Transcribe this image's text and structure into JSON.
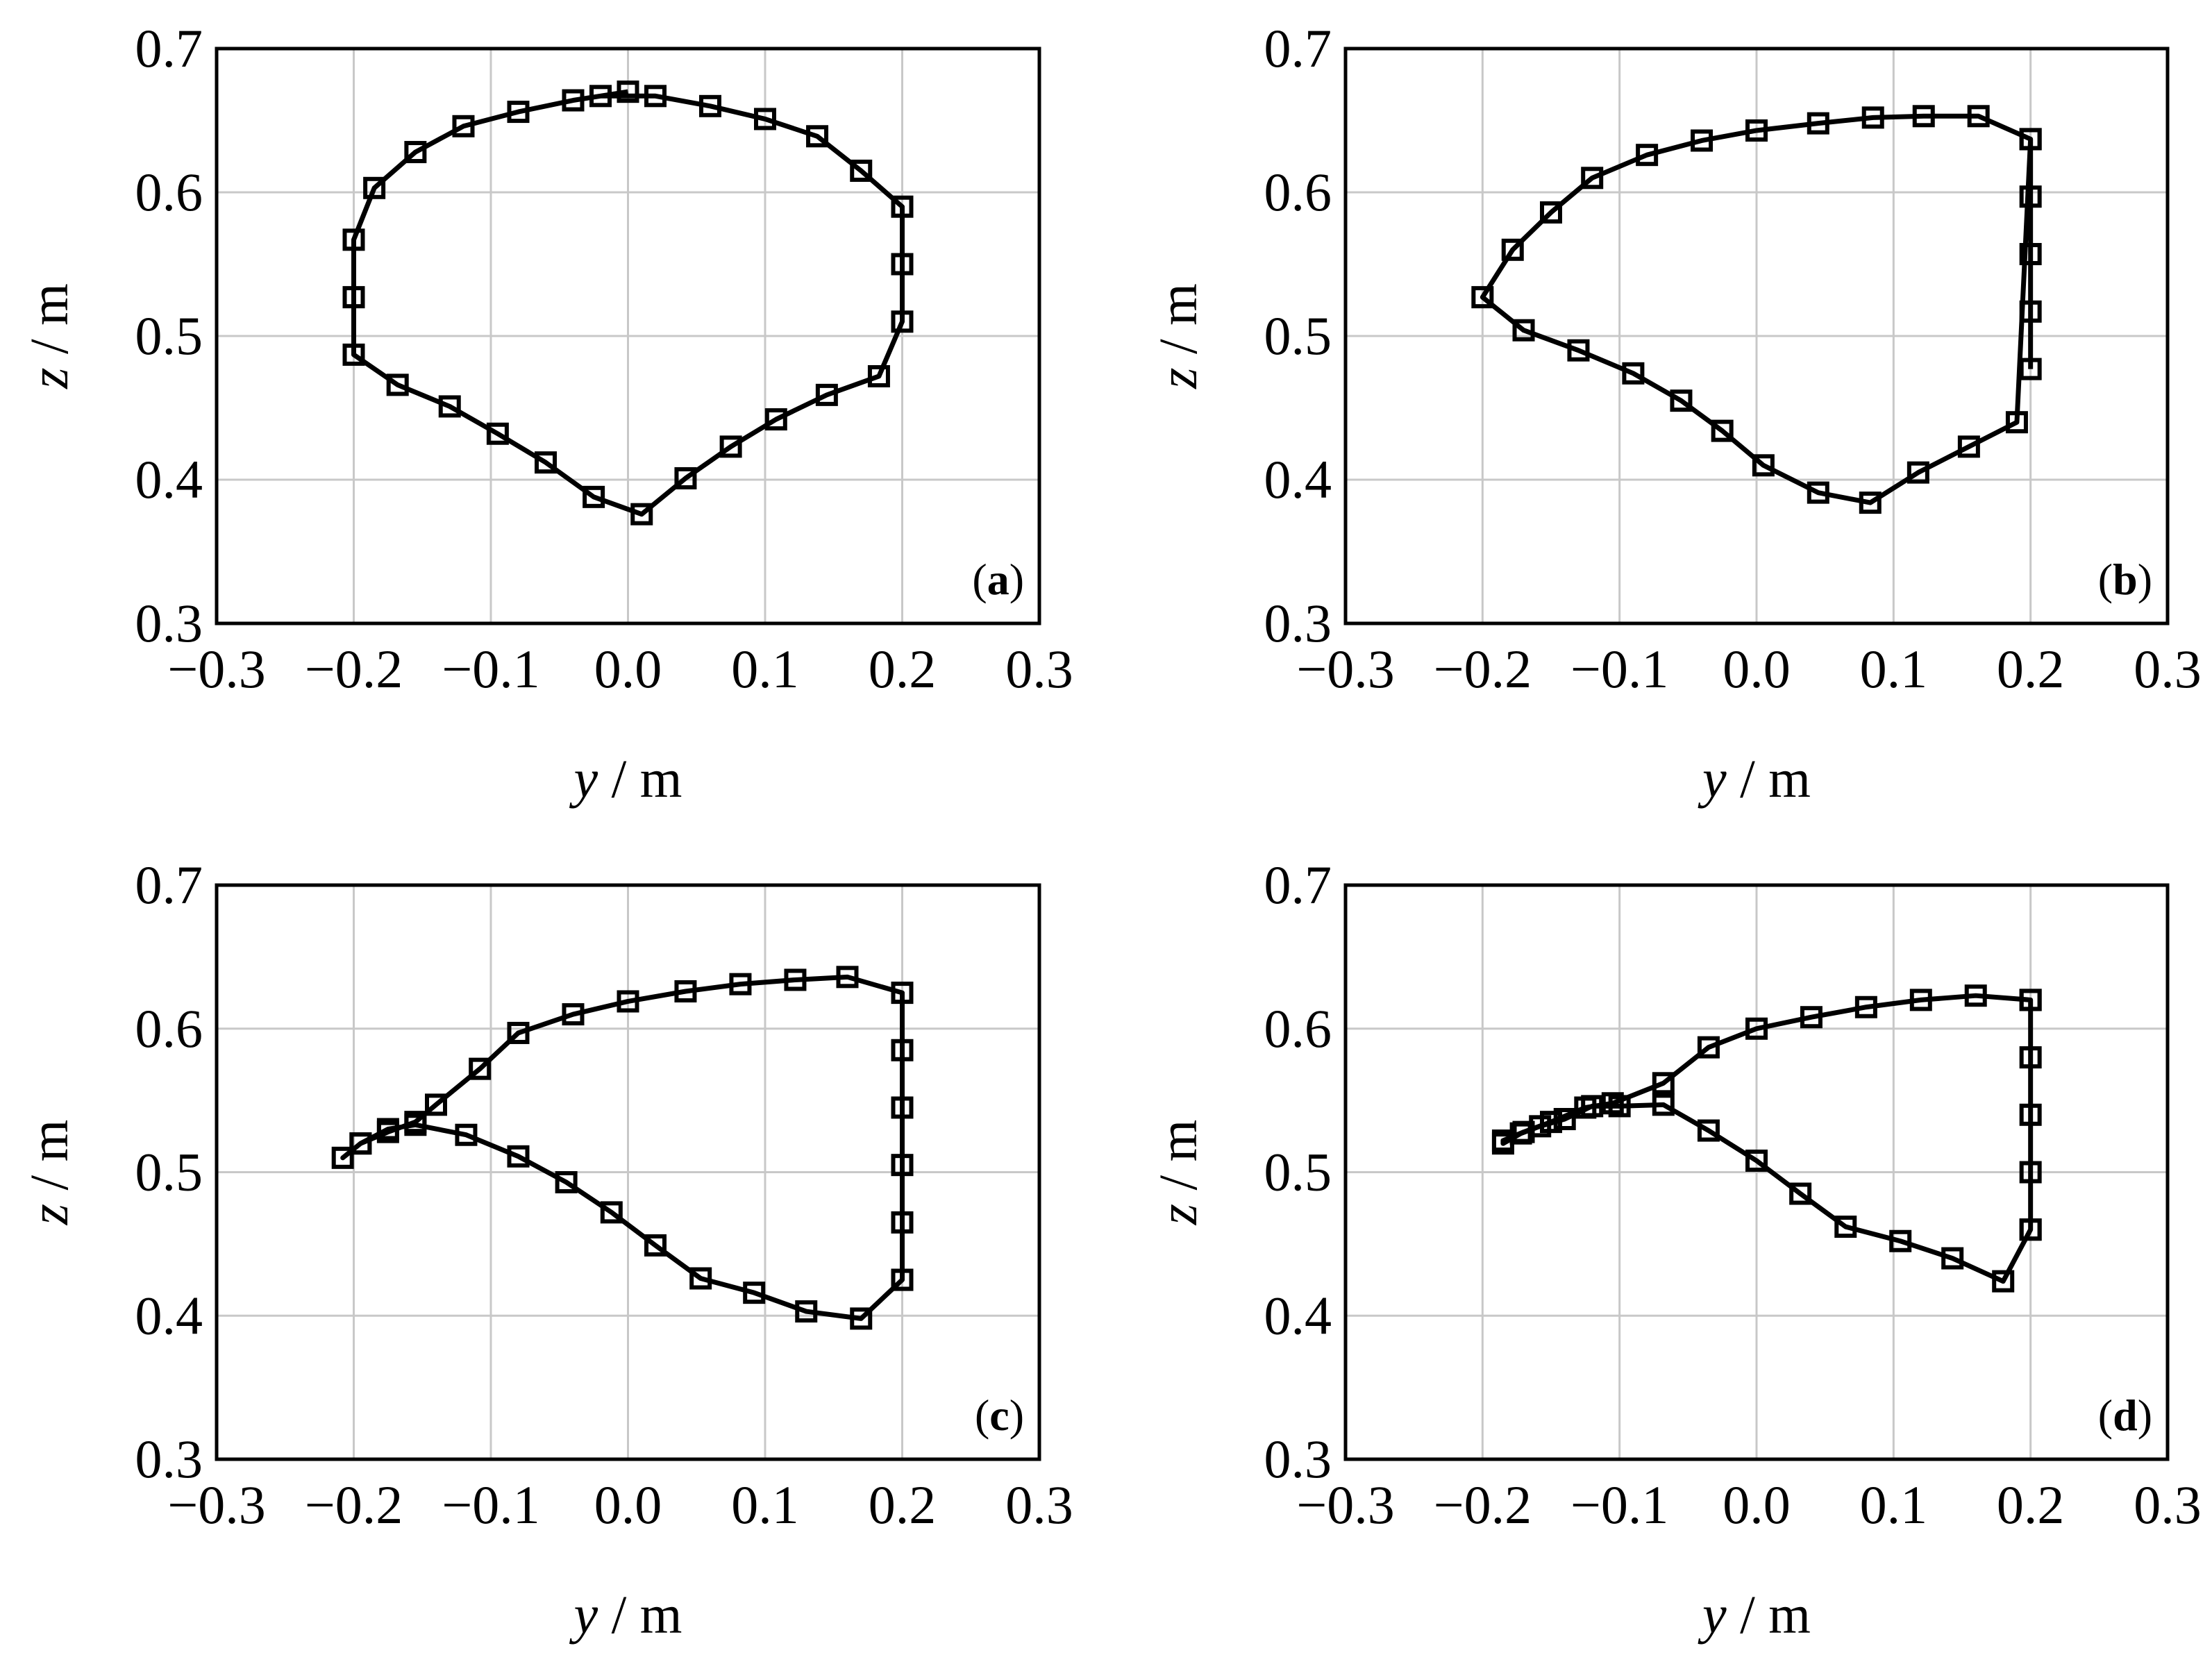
{
  "chart_data": [
    {
      "type": "line",
      "panel_label": "a",
      "xlabel": {
        "var": "y",
        "unit": " / m"
      },
      "ylabel": {
        "var": "z",
        "unit": " / m"
      },
      "xlim": [
        -0.3,
        0.3
      ],
      "ylim": [
        0.3,
        0.7
      ],
      "xticks": [
        "−0.3",
        "−0.2",
        "−0.1",
        "0.0",
        "0.1",
        "0.2",
        "0.3"
      ],
      "yticks": [
        "0.3",
        "0.4",
        "0.5",
        "0.6",
        "0.7"
      ],
      "grid": true,
      "marker": "square",
      "x": [
        0.0,
        -0.04,
        -0.08,
        -0.12,
        -0.155,
        -0.185,
        -0.2,
        -0.2,
        -0.2,
        -0.168,
        -0.13,
        -0.095,
        -0.06,
        -0.025,
        0.01,
        0.042,
        0.075,
        0.108,
        0.145,
        0.183,
        0.2,
        0.2,
        0.2,
        0.17,
        0.138,
        0.1,
        0.06,
        0.02,
        -0.02,
        0.0
      ],
      "y": [
        0.67,
        0.664,
        0.656,
        0.646,
        0.628,
        0.603,
        0.567,
        0.527,
        0.487,
        0.466,
        0.451,
        0.432,
        0.412,
        0.388,
        0.376,
        0.401,
        0.423,
        0.442,
        0.459,
        0.472,
        0.51,
        0.55,
        0.59,
        0.615,
        0.639,
        0.651,
        0.66,
        0.667,
        0.667,
        0.67
      ]
    },
    {
      "type": "line",
      "panel_label": "b",
      "xlabel": {
        "var": "y",
        "unit": " / m"
      },
      "ylabel": {
        "var": "z",
        "unit": " / m"
      },
      "xlim": [
        -0.3,
        0.3
      ],
      "ylim": [
        0.3,
        0.7
      ],
      "xticks": [
        "−0.3",
        "−0.2",
        "−0.1",
        "0.0",
        "0.1",
        "0.2",
        "0.3"
      ],
      "yticks": [
        "0.3",
        "0.4",
        "0.5",
        "0.6",
        "0.7"
      ],
      "grid": true,
      "marker": "square",
      "x": [
        0.2,
        0.2,
        0.2,
        0.2,
        0.2,
        0.19,
        0.155,
        0.118,
        0.083,
        0.045,
        0.005,
        -0.025,
        -0.055,
        -0.09,
        -0.13,
        -0.17,
        -0.2,
        -0.178,
        -0.15,
        -0.12,
        -0.08,
        -0.04,
        0.0,
        0.045,
        0.085,
        0.122,
        0.162,
        0.2
      ],
      "y": [
        0.477,
        0.517,
        0.557,
        0.597,
        0.637,
        0.44,
        0.423,
        0.405,
        0.384,
        0.391,
        0.41,
        0.434,
        0.455,
        0.474,
        0.49,
        0.504,
        0.527,
        0.56,
        0.586,
        0.61,
        0.626,
        0.636,
        0.643,
        0.648,
        0.652,
        0.653,
        0.653,
        0.637
      ]
    },
    {
      "type": "line",
      "panel_label": "c",
      "xlabel": {
        "var": "y",
        "unit": " / m"
      },
      "ylabel": {
        "var": "z",
        "unit": " / m"
      },
      "xlim": [
        -0.3,
        0.3
      ],
      "ylim": [
        0.3,
        0.7
      ],
      "xticks": [
        "−0.3",
        "−0.2",
        "−0.1",
        "0.0",
        "0.1",
        "0.2",
        "0.3"
      ],
      "yticks": [
        "0.3",
        "0.4",
        "0.5",
        "0.6",
        "0.7"
      ],
      "grid": true,
      "marker": "square",
      "x": [
        0.2,
        0.2,
        0.2,
        0.2,
        0.2,
        0.2,
        0.2,
        0.17,
        0.13,
        0.092,
        0.053,
        0.02,
        -0.012,
        -0.045,
        -0.08,
        -0.118,
        -0.155,
        -0.175,
        -0.195,
        -0.208,
        -0.195,
        -0.175,
        -0.155,
        -0.14,
        -0.108,
        -0.08,
        -0.04,
        0.0,
        0.042,
        0.082,
        0.122,
        0.16,
        0.2
      ],
      "y": [
        0.425,
        0.465,
        0.505,
        0.545,
        0.585,
        0.625,
        0.425,
        0.398,
        0.403,
        0.416,
        0.426,
        0.449,
        0.472,
        0.493,
        0.511,
        0.526,
        0.533,
        0.53,
        0.52,
        0.51,
        0.52,
        0.528,
        0.535,
        0.547,
        0.572,
        0.597,
        0.61,
        0.619,
        0.626,
        0.631,
        0.634,
        0.636,
        0.625
      ]
    },
    {
      "type": "line",
      "panel_label": "d",
      "xlabel": {
        "var": "y",
        "unit": " / m"
      },
      "ylabel": {
        "var": "z",
        "unit": " / m"
      },
      "xlim": [
        -0.3,
        0.3
      ],
      "ylim": [
        0.3,
        0.7
      ],
      "xticks": [
        "−0.3",
        "−0.2",
        "−0.1",
        "0.0",
        "0.1",
        "0.2",
        "0.3"
      ],
      "yticks": [
        "0.3",
        "0.4",
        "0.5",
        "0.6",
        "0.7"
      ],
      "grid": true,
      "marker": "square",
      "x": [
        0.2,
        0.2,
        0.2,
        0.2,
        0.2,
        0.2,
        0.18,
        0.143,
        0.105,
        0.065,
        0.032,
        0.0,
        -0.035,
        -0.068,
        -0.1,
        -0.12,
        -0.14,
        -0.158,
        -0.172,
        -0.185,
        -0.185,
        -0.17,
        -0.15,
        -0.125,
        -0.105,
        -0.068,
        -0.035,
        0.0,
        0.04,
        0.08,
        0.12,
        0.16,
        0.2
      ],
      "y": [
        0.46,
        0.5,
        0.54,
        0.58,
        0.62,
        0.46,
        0.424,
        0.44,
        0.452,
        0.462,
        0.485,
        0.508,
        0.529,
        0.547,
        0.546,
        0.546,
        0.537,
        0.532,
        0.527,
        0.52,
        0.522,
        0.528,
        0.535,
        0.545,
        0.548,
        0.562,
        0.587,
        0.6,
        0.608,
        0.615,
        0.62,
        0.623,
        0.62
      ]
    }
  ]
}
